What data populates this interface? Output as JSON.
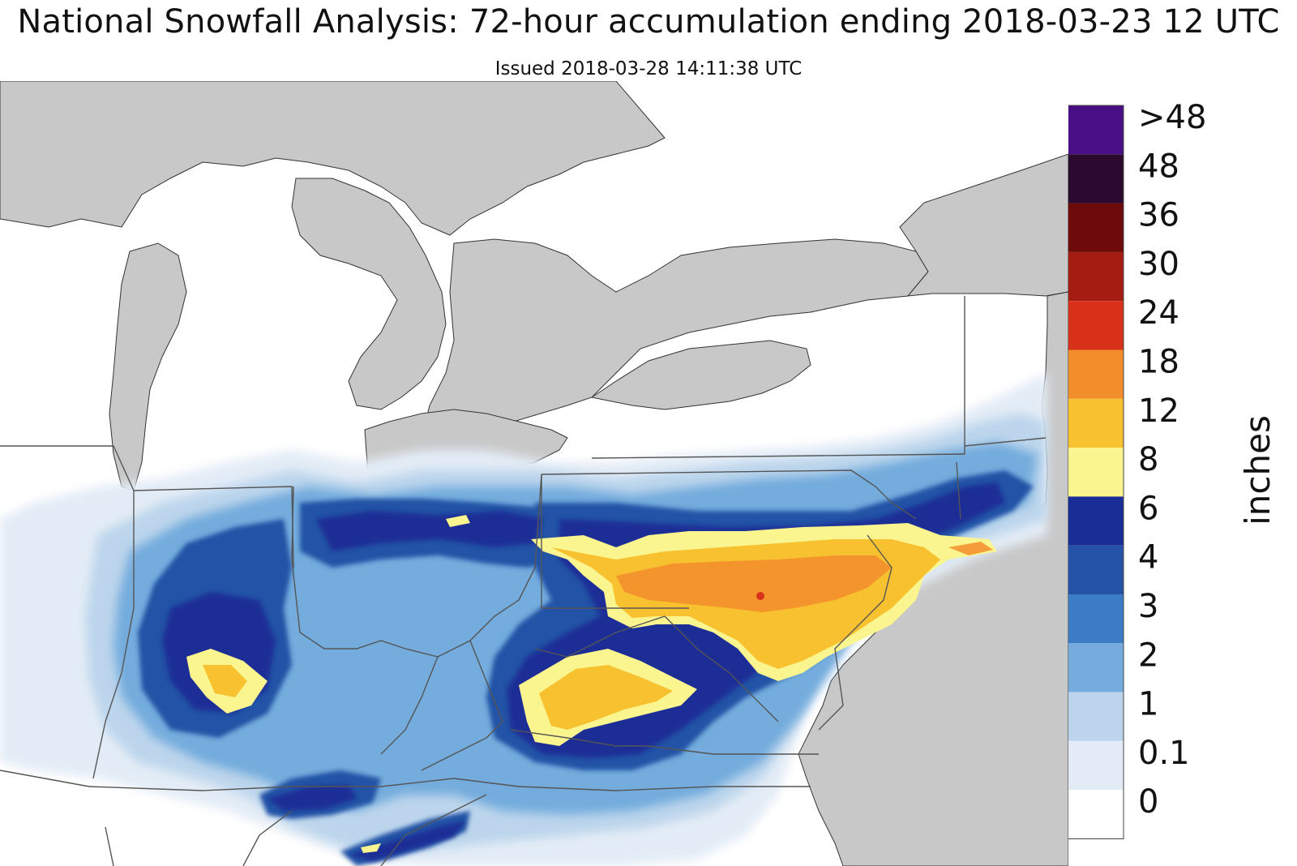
{
  "title": "National Snowfall Analysis: 72-hour accumulation ending 2018-03-23 12 UTC",
  "subtitle": "Issued 2018-03-28 14:11:38 UTC",
  "legend": {
    "unit_label": "inches",
    "levels": [
      {
        "label": ">48",
        "color": "#4a0e87"
      },
      {
        "label": "48",
        "color": "#2a0a2e"
      },
      {
        "label": "36",
        "color": "#6d0b0b"
      },
      {
        "label": "30",
        "color": "#a51d12"
      },
      {
        "label": "24",
        "color": "#d8321a"
      },
      {
        "label": "18",
        "color": "#f28d2b"
      },
      {
        "label": "12",
        "color": "#f8c12f"
      },
      {
        "label": "8",
        "color": "#fbf58f"
      },
      {
        "label": "6",
        "color": "#1a2d96"
      },
      {
        "label": "4",
        "color": "#2352a6"
      },
      {
        "label": "3",
        "color": "#3c7cc6"
      },
      {
        "label": "2",
        "color": "#73acdd"
      },
      {
        "label": "1",
        "color": "#bcd5ec"
      },
      {
        "label": "0.1",
        "color": "#e3ecf6"
      },
      {
        "label": "0",
        "color": "#ffffff"
      }
    ]
  },
  "colors": {
    "water": "#c8c8c8",
    "land": "#ffffff",
    "border": "#555555"
  }
}
